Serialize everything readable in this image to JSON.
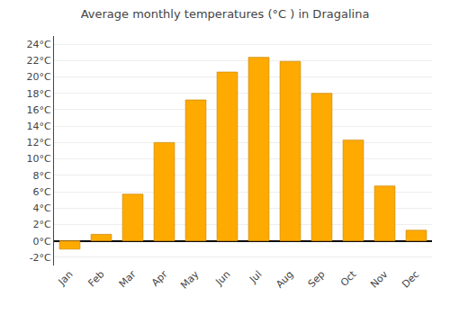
{
  "chart_data": {
    "type": "bar",
    "title": "Average monthly temperatures (°C ) in Dragalina",
    "categories": [
      "Jan",
      "Feb",
      "Mar",
      "Apr",
      "May",
      "Jun",
      "Jul",
      "Aug",
      "Sep",
      "Oct",
      "Nov",
      "Dec"
    ],
    "values": [
      -1.0,
      0.8,
      5.7,
      12.0,
      17.2,
      20.6,
      22.4,
      21.9,
      18.0,
      12.3,
      6.7,
      1.3
    ],
    "color": "#FFAA00",
    "ylim": [
      -3,
      25
    ],
    "yticks": [
      {
        "value": -2,
        "label": "-2°C"
      },
      {
        "value": 0,
        "label": "0°C"
      },
      {
        "value": 2,
        "label": "2°C"
      },
      {
        "value": 4,
        "label": "4°C"
      },
      {
        "value": 6,
        "label": "6°C"
      },
      {
        "value": 8,
        "label": "8°C"
      },
      {
        "value": 10,
        "label": "10°C"
      },
      {
        "value": 12,
        "label": "12°C"
      },
      {
        "value": 14,
        "label": "14°C"
      },
      {
        "value": 16,
        "label": "16°C"
      },
      {
        "value": 18,
        "label": "18°C"
      },
      {
        "value": 20,
        "label": "20°C"
      },
      {
        "value": 22,
        "label": "22°C"
      },
      {
        "value": 24,
        "label": "24°C"
      }
    ],
    "grid": true
  }
}
